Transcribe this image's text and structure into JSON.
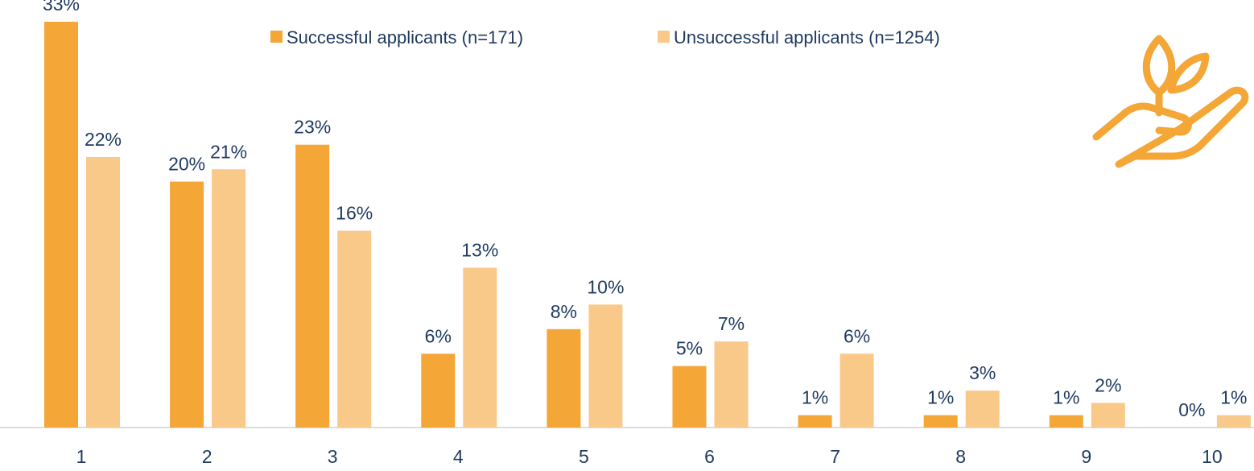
{
  "chart_data": {
    "type": "bar",
    "categories": [
      "1",
      "2",
      "3",
      "4",
      "5",
      "6",
      "7",
      "8",
      "9",
      "10"
    ],
    "series": [
      {
        "name": "Successful applicants (n=171)",
        "color": "#f4a637",
        "values": [
          33,
          20,
          23,
          6,
          8,
          5,
          1,
          1,
          1,
          0
        ],
        "value_labels": [
          "33%",
          "20%",
          "23%",
          "6%",
          "8%",
          "5%",
          "1%",
          "1%",
          "1%",
          "0%"
        ]
      },
      {
        "name": "Unsuccessful applicants (n=1254)",
        "color": "#f9c98a",
        "values": [
          22,
          21,
          16,
          13,
          10,
          7,
          6,
          3,
          2,
          1
        ],
        "value_labels": [
          "22%",
          "21%",
          "16%",
          "13%",
          "10%",
          "7%",
          "6%",
          "3%",
          "2%",
          "1%"
        ]
      }
    ]
  }
}
